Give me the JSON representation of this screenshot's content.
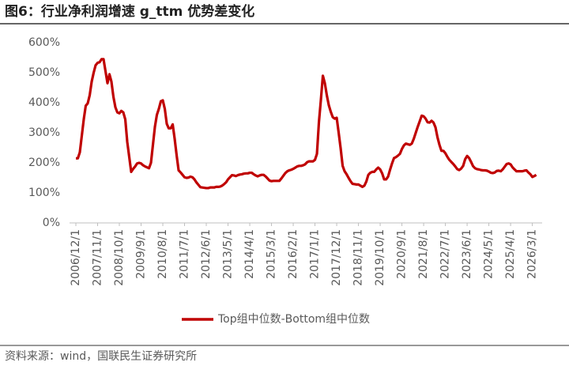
{
  "chart_data": {
    "type": "line",
    "title": "图6：行业净利润增速 g_ttm 优势差变化",
    "source": "资料来源：wind，国联民生证券研究所",
    "categories": [
      "2006/12/1",
      null,
      null,
      null,
      null,
      null,
      null,
      null,
      null,
      null,
      null,
      "2007/11/1",
      null,
      null,
      null,
      null,
      null,
      null,
      null,
      null,
      null,
      null,
      "2008/10/1",
      null,
      null,
      null,
      null,
      null,
      null,
      null,
      null,
      null,
      null,
      "2009/9/1",
      null,
      null,
      null,
      null,
      null,
      null,
      null,
      null,
      null,
      null,
      "2010/8/1",
      null,
      null,
      null,
      null,
      null,
      null,
      null,
      null,
      null,
      null,
      "2011/7/1",
      null,
      null,
      null,
      null,
      null,
      null,
      null,
      null,
      null,
      null,
      "2012/6/1",
      null,
      null,
      null,
      null,
      null,
      null,
      null,
      null,
      null,
      null,
      "2013/5/1",
      null,
      null,
      null,
      null,
      null,
      null,
      null,
      null,
      null,
      null,
      "2014/4/1",
      null,
      null,
      null,
      null,
      null,
      null,
      null,
      null,
      null,
      null,
      "2015/3/1",
      null,
      null,
      null,
      null,
      null,
      null,
      null,
      null,
      null,
      null,
      "2016/2/1",
      null,
      null,
      null,
      null,
      null,
      null,
      null,
      null,
      null,
      null,
      "2017/1/1",
      null,
      null,
      null,
      null,
      null,
      null,
      null,
      null,
      null,
      null,
      "2017/12/1",
      null,
      null,
      null,
      null,
      null,
      null,
      null,
      null,
      null,
      null,
      "2018/11/1",
      null,
      null,
      null,
      null,
      null,
      null,
      null,
      null,
      null,
      null,
      "2019/10/1",
      null,
      null,
      null,
      null,
      null,
      null,
      null,
      null,
      null,
      null,
      "2020/9/1",
      null,
      null,
      null,
      null,
      null,
      null,
      null,
      null,
      null,
      null,
      "2021/8/1",
      null,
      null,
      null,
      null,
      null,
      null,
      null,
      null,
      null,
      null,
      "2022/7/1",
      null,
      null,
      null,
      null,
      null,
      null,
      null,
      null,
      null,
      null,
      "2023/6/1",
      null,
      null,
      null,
      null,
      null,
      null,
      null,
      null,
      null,
      null,
      "2024/5/1",
      null,
      null,
      null,
      null,
      null,
      null,
      null,
      null,
      null,
      null,
      "2025/4/1",
      null,
      null,
      null,
      null,
      null,
      null,
      null,
      null,
      null,
      null,
      "2026/3/1",
      null,
      null
    ],
    "series": [
      {
        "name": "Top组中位数-Bottom组中位数",
        "color": "#c00000",
        "values": [
          215,
          215,
          235,
          290,
          345,
          390,
          398,
          425,
          470,
          500,
          525,
          533,
          535,
          545,
          545,
          505,
          465,
          495,
          470,
          420,
          385,
          368,
          365,
          373,
          368,
          345,
          270,
          220,
          170,
          180,
          188,
          198,
          200,
          198,
          192,
          188,
          185,
          182,
          200,
          260,
          320,
          360,
          380,
          405,
          408,
          380,
          330,
          315,
          315,
          328,
          280,
          225,
          175,
          168,
          160,
          152,
          150,
          151,
          154,
          152,
          145,
          135,
          127,
          119,
          118,
          117,
          116,
          116,
          118,
          118,
          118,
          120,
          120,
          121,
          124,
          129,
          135,
          145,
          152,
          159,
          158,
          156,
          159,
          161,
          162,
          164,
          165,
          165,
          167,
          167,
          162,
          158,
          155,
          158,
          160,
          160,
          155,
          148,
          141,
          139,
          140,
          140,
          140,
          140,
          148,
          157,
          166,
          172,
          175,
          177,
          180,
          184,
          188,
          190,
          190,
          192,
          195,
          202,
          205,
          205,
          205,
          210,
          230,
          335,
          410,
          490,
          465,
          425,
          392,
          370,
          352,
          347,
          350,
          300,
          248,
          190,
          172,
          162,
          150,
          139,
          130,
          129,
          128,
          128,
          124,
          120,
          124,
          138,
          160,
          167,
          170,
          170,
          178,
          184,
          178,
          165,
          145,
          145,
          154,
          177,
          198,
          216,
          219,
          224,
          230,
          246,
          258,
          264,
          262,
          260,
          264,
          280,
          300,
          320,
          338,
          357,
          355,
          347,
          335,
          334,
          340,
          334,
          318,
          285,
          260,
          240,
          240,
          232,
          220,
          210,
          203,
          196,
          188,
          179,
          176,
          181,
          190,
          212,
          223,
          216,
          203,
          189,
          182,
          179,
          178,
          176,
          175,
          175,
          174,
          171,
          167,
          166,
          168,
          173,
          174,
          172,
          178,
          187,
          196,
          198,
          195,
          185,
          178,
          172,
          172,
          172,
          172,
          174,
          175,
          168,
          162,
          153,
          156,
          160
        ]
      }
    ],
    "ylim": [
      0,
      600
    ],
    "yticks": [
      {
        "value": 0,
        "label": "0%"
      },
      {
        "value": 100,
        "label": "100%"
      },
      {
        "value": 200,
        "label": "200%"
      },
      {
        "value": 300,
        "label": "300%"
      },
      {
        "value": 400,
        "label": "400%"
      },
      {
        "value": 500,
        "label": "500%"
      },
      {
        "value": 600,
        "label": "600%"
      }
    ],
    "grid": false,
    "legend": "bottom"
  }
}
